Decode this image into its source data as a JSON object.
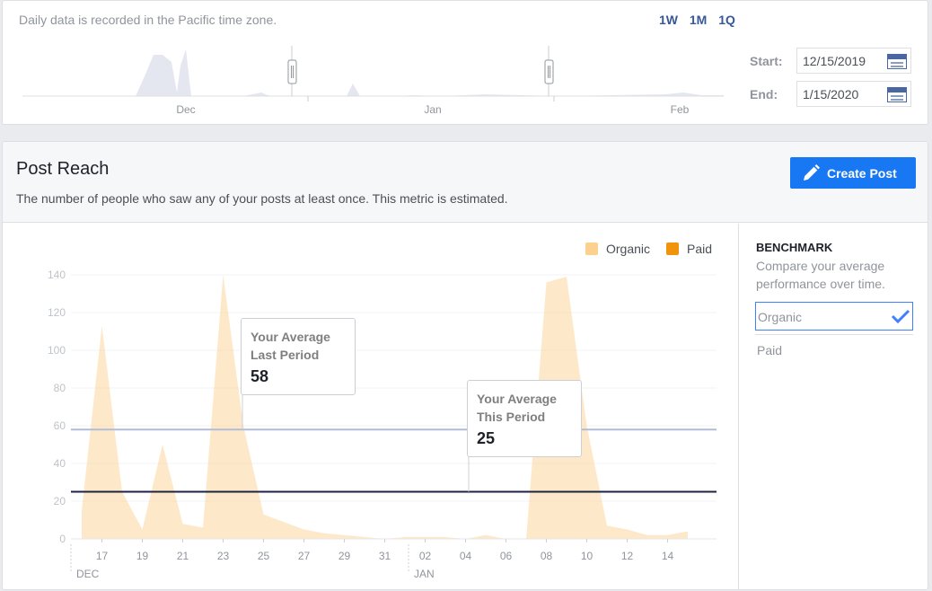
{
  "range_panel": {
    "timezone_note": "Daily data is recorded in the Pacific time zone.",
    "range_links": [
      "1W",
      "1M",
      "1Q"
    ],
    "month_labels": [
      "Dec",
      "Jan",
      "Feb"
    ],
    "start_label": "Start:",
    "start_value": "12/15/2019",
    "end_label": "End:",
    "end_value": "1/15/2020"
  },
  "reach": {
    "title": "Post Reach",
    "description": "The number of people who saw any of your posts at least once. This metric is estimated.",
    "create_button_label": "Create Post",
    "callouts": {
      "last_period": {
        "line1": "Your Average",
        "line2": "Last Period",
        "value": "58"
      },
      "this_period": {
        "line1": "Your Average",
        "line2": "This Period",
        "value": "25"
      }
    }
  },
  "benchmark": {
    "title": "BENCHMARK",
    "description": "Compare your average performance over time.",
    "options": [
      "Organic",
      "Paid"
    ],
    "selected": "Organic"
  },
  "colors": {
    "organic": "#fcd79d",
    "paid": "#f2940b",
    "avg_last": "#b3bcd6",
    "avg_this": "#1c2340",
    "accent": "#1877f2"
  },
  "chart_data": {
    "type": "area",
    "legend": [
      "Organic",
      "Paid"
    ],
    "legend_position": "top-right",
    "ylim": [
      0,
      140
    ],
    "y_ticks": [
      0,
      20,
      40,
      60,
      80,
      100,
      120,
      140
    ],
    "x_tick_labels": [
      "17",
      "19",
      "21",
      "23",
      "25",
      "27",
      "29",
      "31",
      "02",
      "04",
      "06",
      "08",
      "10",
      "12",
      "14"
    ],
    "month_markers": [
      "DEC",
      "JAN"
    ],
    "x_dates": [
      "12/16",
      "12/17",
      "12/18",
      "12/19",
      "12/20",
      "12/21",
      "12/22",
      "12/23",
      "12/24",
      "12/25",
      "12/26",
      "12/27",
      "12/28",
      "12/29",
      "12/30",
      "12/31",
      "01/01",
      "01/02",
      "01/03",
      "01/04",
      "01/05",
      "01/06",
      "01/07",
      "01/08",
      "01/09",
      "01/10",
      "01/11",
      "01/12",
      "01/13",
      "01/14",
      "01/15"
    ],
    "series": [
      {
        "name": "Organic",
        "values": [
          15,
          113,
          25,
          5,
          50,
          8,
          6,
          140,
          60,
          13,
          9,
          5,
          3,
          2,
          1,
          0,
          1,
          1,
          1,
          0,
          2,
          0,
          0,
          136,
          139,
          60,
          7,
          5,
          2,
          2,
          4
        ]
      },
      {
        "name": "Paid",
        "values": [
          0,
          0,
          0,
          0,
          0,
          0,
          0,
          0,
          0,
          0,
          0,
          0,
          0,
          0,
          0,
          0,
          0,
          0,
          0,
          0,
          0,
          0,
          0,
          0,
          0,
          0,
          0,
          0,
          0,
          0,
          0
        ]
      }
    ],
    "reference_lines": [
      {
        "label": "Your Average Last Period",
        "value": 58
      },
      {
        "label": "Your Average This Period",
        "value": 25
      }
    ]
  }
}
